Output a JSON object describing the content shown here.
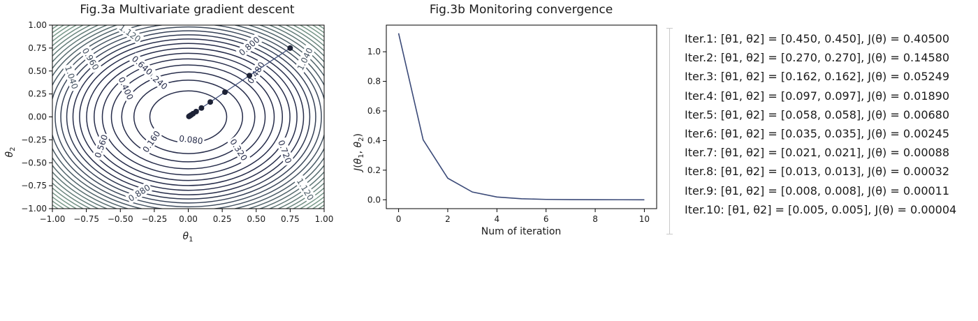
{
  "chart_data": [
    {
      "type": "contour",
      "title": "Fig.3a Multivariate gradient descent",
      "xlabel": "θ1",
      "ylabel": "θ2",
      "xlim": [
        -1.0,
        1.0
      ],
      "ylim": [
        -1.0,
        1.0
      ],
      "x_ticks": [
        "−1.00",
        "−0.75",
        "−0.50",
        "−0.25",
        "0.00",
        "0.25",
        "0.50",
        "0.75",
        "1.00"
      ],
      "y_ticks": [
        "−1.00",
        "−0.75",
        "−0.50",
        "−0.25",
        "0.00",
        "0.25",
        "0.50",
        "0.75",
        "1.00"
      ],
      "contour_levels": [
        0.08,
        0.16,
        0.24,
        0.32,
        0.4,
        0.48,
        0.56,
        0.64,
        0.72,
        0.8,
        0.88,
        0.96,
        1.04,
        1.12,
        1.2,
        1.28,
        1.36,
        1.44,
        1.52,
        1.6,
        1.68,
        1.76,
        1.84,
        1.92
      ],
      "contour_labels": [
        {
          "text": "0.080",
          "x": 0.02,
          "y": -0.25
        },
        {
          "text": "0.160",
          "x": -0.27,
          "y": -0.27
        },
        {
          "text": "0.240",
          "x": -0.23,
          "y": 0.4
        },
        {
          "text": "0.320",
          "x": 0.37,
          "y": -0.36
        },
        {
          "text": "0.400",
          "x": -0.46,
          "y": 0.31
        },
        {
          "text": "0.480",
          "x": 0.5,
          "y": 0.48
        },
        {
          "text": "0.560",
          "x": -0.64,
          "y": -0.32
        },
        {
          "text": "0.640",
          "x": -0.34,
          "y": 0.56
        },
        {
          "text": "0.720",
          "x": 0.71,
          "y": -0.38
        },
        {
          "text": "0.800",
          "x": 0.45,
          "y": 0.77
        },
        {
          "text": "0.880",
          "x": -0.36,
          "y": -0.83
        },
        {
          "text": "0.960",
          "x": -0.72,
          "y": 0.63
        },
        {
          "text": "1.040",
          "x": -0.86,
          "y": 0.43
        },
        {
          "text": "1.120",
          "x": -0.43,
          "y": 0.91
        },
        {
          "text": "1.040",
          "x": 0.86,
          "y": 0.63
        },
        {
          "text": "1.120",
          "x": 0.86,
          "y": -0.79
        }
      ],
      "path": [
        {
          "x": 0.75,
          "y": 0.75
        },
        {
          "x": 0.45,
          "y": 0.45
        },
        {
          "x": 0.27,
          "y": 0.27
        },
        {
          "x": 0.162,
          "y": 0.162
        },
        {
          "x": 0.097,
          "y": 0.097
        },
        {
          "x": 0.058,
          "y": 0.058
        },
        {
          "x": 0.035,
          "y": 0.035
        },
        {
          "x": 0.021,
          "y": 0.021
        },
        {
          "x": 0.013,
          "y": 0.013
        },
        {
          "x": 0.008,
          "y": 0.008
        },
        {
          "x": 0.005,
          "y": 0.005
        }
      ],
      "colors": {
        "inner": "#262c4a",
        "outer": "#7a9a8a",
        "path": "#3b4a78"
      }
    },
    {
      "type": "line",
      "title": "Fig.3b Monitoring convergence",
      "xlabel": "Num of iteration",
      "ylabel": "J(θ1, θ2)",
      "xlim": [
        -0.5,
        10.5
      ],
      "ylim": [
        -0.06,
        1.18
      ],
      "x_ticks": [
        0,
        2,
        4,
        6,
        8,
        10
      ],
      "y_ticks": [
        "0.0",
        "0.2",
        "0.4",
        "0.6",
        "0.8",
        "1.0"
      ],
      "x": [
        0,
        1,
        2,
        3,
        4,
        5,
        6,
        7,
        8,
        9,
        10
      ],
      "values": [
        1.125,
        0.405,
        0.1458,
        0.05249,
        0.0189,
        0.0068,
        0.00245,
        0.00088,
        0.00032,
        0.00011,
        4e-05
      ],
      "color": "#3b4a78"
    }
  ],
  "iterations": [
    "Iter.1: [θ1, θ2] = [0.450, 0.450],  J(θ) = 0.40500",
    "Iter.2: [θ1, θ2] = [0.270, 0.270],  J(θ) = 0.14580",
    "Iter.3: [θ1, θ2] = [0.162, 0.162],  J(θ) = 0.05249",
    "Iter.4: [θ1, θ2] = [0.097, 0.097],  J(θ) = 0.01890",
    "Iter.5: [θ1, θ2] = [0.058, 0.058],  J(θ) = 0.00680",
    "Iter.6: [θ1, θ2] = [0.035, 0.035],  J(θ) = 0.00245",
    "Iter.7: [θ1, θ2] = [0.021, 0.021],  J(θ) = 0.00088",
    "Iter.8: [θ1, θ2] = [0.013, 0.013],  J(θ) = 0.00032",
    "Iter.9: [θ1, θ2] = [0.008, 0.008],  J(θ) = 0.00011",
    "Iter.10: [θ1, θ2] = [0.005, 0.005],  J(θ) = 0.00004"
  ]
}
